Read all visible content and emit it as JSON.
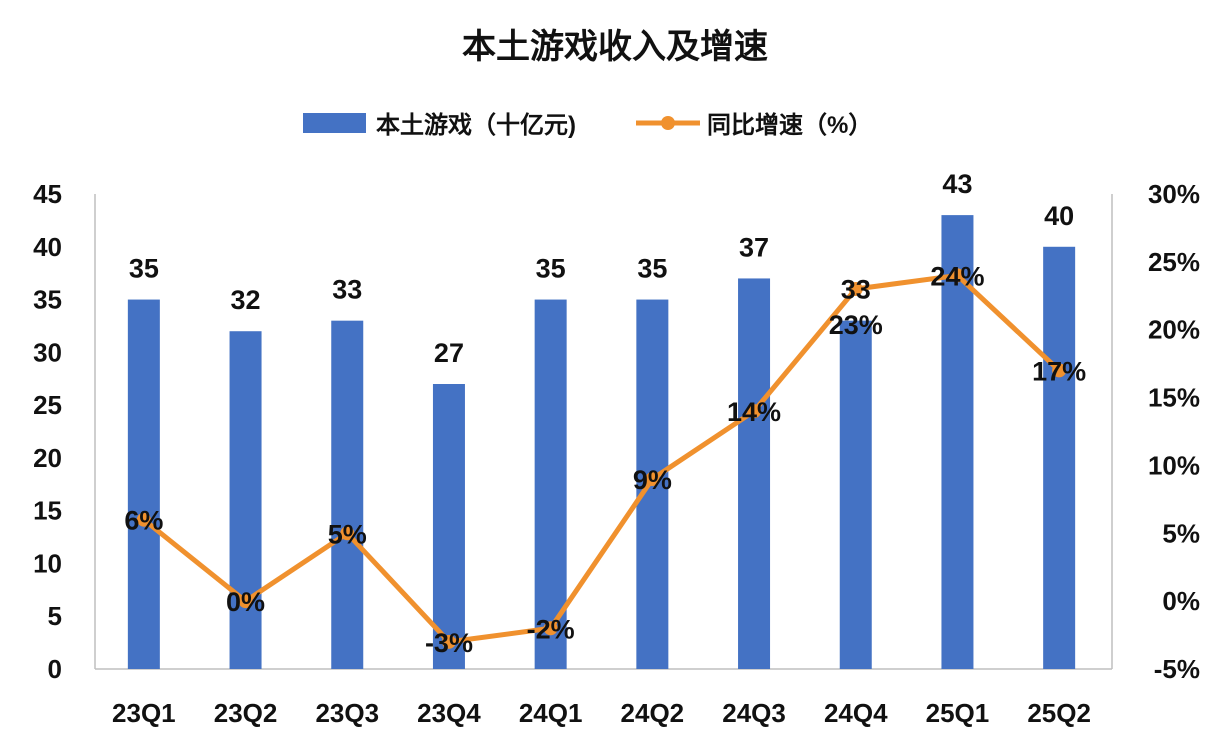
{
  "chart_data": {
    "type": "bar+line",
    "title": "本土游戏收入及增速",
    "categories": [
      "23Q1",
      "23Q2",
      "23Q3",
      "23Q4",
      "24Q1",
      "24Q2",
      "24Q3",
      "24Q4",
      "25Q1",
      "25Q2"
    ],
    "series": [
      {
        "name": "本土游戏（十亿元)",
        "type": "bar",
        "axis": "left",
        "color": "#4472C4",
        "values": [
          35,
          32,
          33,
          27,
          35,
          35,
          37,
          33,
          43,
          40
        ],
        "labels": [
          "35",
          "32",
          "33",
          "27",
          "35",
          "35",
          "37",
          "33",
          "43",
          "40"
        ]
      },
      {
        "name": "同比增速（%）",
        "type": "line",
        "axis": "right",
        "color": "#F0912E",
        "values": [
          6,
          0,
          5,
          -3,
          -2,
          9,
          14,
          23,
          24,
          17
        ],
        "labels": [
          "6%",
          "0%",
          "5%",
          "-3%",
          "-2%",
          "9%",
          "14%",
          "23%",
          "24%",
          "17%"
        ]
      }
    ],
    "left_axis": {
      "ylim": [
        0,
        45
      ],
      "ticks": [
        "0",
        "5",
        "10",
        "15",
        "20",
        "25",
        "30",
        "35",
        "40",
        "45"
      ]
    },
    "right_axis": {
      "ylim": [
        -5,
        30
      ],
      "ticks": [
        "-5%",
        "0%",
        "5%",
        "10%",
        "15%",
        "20%",
        "25%",
        "30%"
      ]
    },
    "legend_position": "top-center",
    "grid": false
  }
}
